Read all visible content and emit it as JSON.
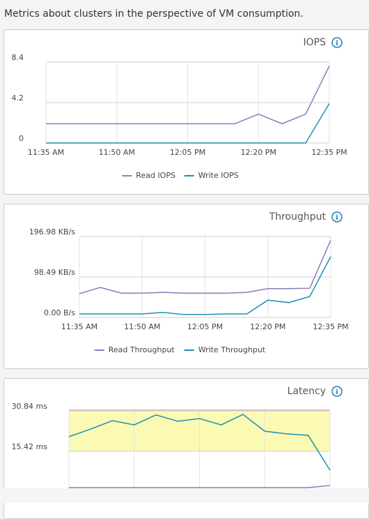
{
  "header": "Metrics about clusters in the perspective of VM consumption.",
  "chart_data": [
    {
      "type": "line",
      "title": "IOPS",
      "categories": [
        "11:35 AM",
        null,
        null,
        "11:50 AM",
        null,
        null,
        "12:05 PM",
        null,
        null,
        "12:20 PM",
        null,
        null,
        "12:35 PM"
      ],
      "series": [
        {
          "name": "Read IOPS",
          "color": "#8a7bb7",
          "values": [
            2.0,
            2.0,
            2.0,
            2.0,
            2.0,
            2.0,
            2.0,
            2.0,
            2.0,
            3.0,
            2.0,
            3.0,
            8.0
          ]
        },
        {
          "name": "Write IOPS",
          "color": "#1d8fb0",
          "values": [
            0,
            0,
            0,
            0,
            0,
            0,
            0,
            0,
            0,
            0,
            0,
            0,
            4.1
          ]
        }
      ],
      "ylim": [
        0,
        8.4
      ],
      "yticks": [
        0,
        4.2,
        8.4
      ],
      "grid": true
    },
    {
      "type": "line",
      "title": "Throughput",
      "categories": [
        "11:35 AM",
        null,
        null,
        "11:50 AM",
        null,
        null,
        "12:05 PM",
        null,
        null,
        "12:20 PM",
        null,
        null,
        "12:35 PM"
      ],
      "series": [
        {
          "name": "Read Throughput",
          "color": "#8a7bb7",
          "values": [
            57.7,
            73,
            59,
            59,
            61,
            59,
            59,
            59,
            61,
            70,
            70,
            71,
            188
          ]
        },
        {
          "name": "Write Throughput",
          "color": "#1d8fb0",
          "values": [
            8.5,
            8.5,
            8.5,
            8.5,
            12,
            7,
            7,
            8.5,
            8.5,
            42,
            36,
            51,
            148
          ]
        }
      ],
      "ylim": [
        0,
        196.98
      ],
      "yticks": [
        {
          "value": 0,
          "label": "0.00 B/s"
        },
        {
          "value": 98.49,
          "label": "98.49 KB/s"
        },
        {
          "value": 196.98,
          "label": "196.98 KB/s"
        }
      ],
      "grid": true
    },
    {
      "type": "line",
      "title": "Latency",
      "series": [
        {
          "color": "#8a7bb7",
          "values": [
            1.6,
            1.6,
            1.6,
            1.6,
            1.6,
            1.6,
            1.6,
            1.6,
            1.6,
            1.6,
            1.6,
            1.6,
            2.4
          ]
        },
        {
          "color": "#1d8fb0",
          "values": [
            21.0,
            23.9,
            27.1,
            25.5,
            29.3,
            26.9,
            27.9,
            25.5,
            29.5,
            23.1,
            22.1,
            21.5,
            8.2
          ]
        }
      ],
      "ylim": [
        0,
        30.84
      ],
      "yticks": [
        {
          "value": 15.42,
          "label": "15.42 ms"
        },
        {
          "value": 30.84,
          "label": "30.84 ms"
        }
      ],
      "grid": true
    }
  ]
}
